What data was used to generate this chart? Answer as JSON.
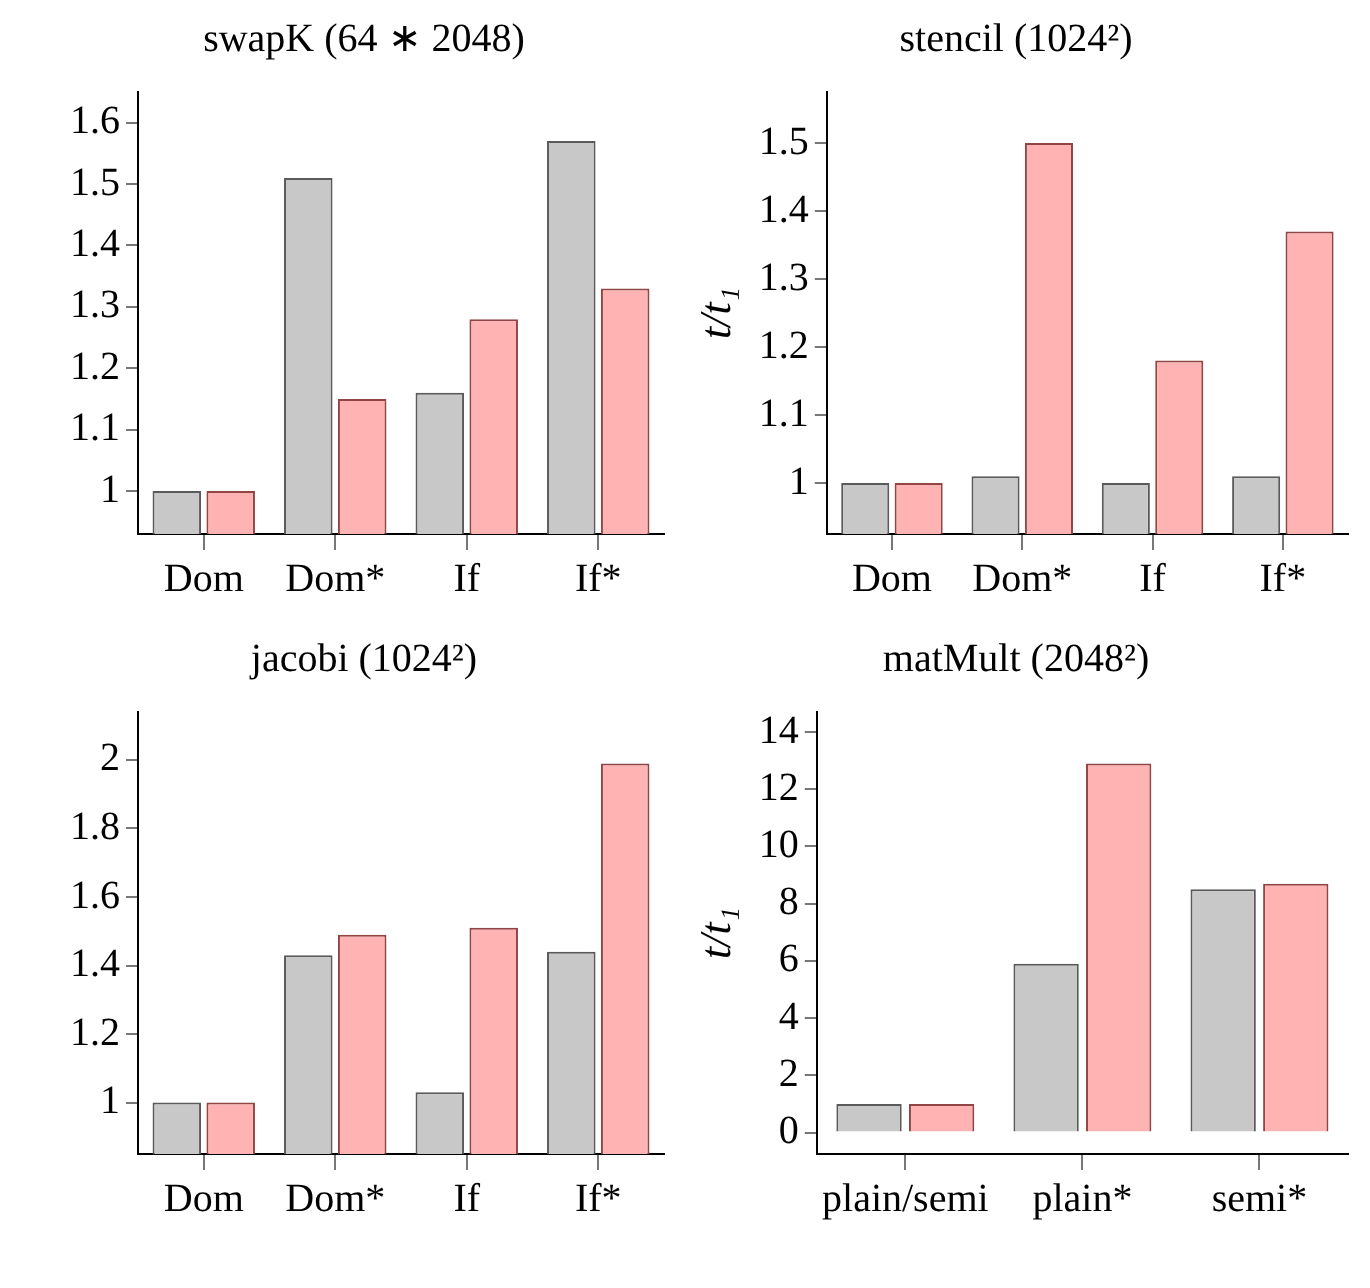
{
  "chart_data": [
    {
      "type": "bar",
      "title": "swapK (64 ∗ 2048)",
      "categories": [
        "Dom",
        "Dom*",
        "If",
        "If*"
      ],
      "series": [
        {
          "color": "#c8c8c8",
          "values": [
            1,
            1.51,
            1.16,
            1.57
          ]
        },
        {
          "color": "#ffb3b3",
          "values": [
            1,
            1.15,
            1.28,
            1.33
          ]
        }
      ],
      "ylim": [
        0.93,
        1.65
      ],
      "yticks": [
        1,
        1.1,
        1.2,
        1.3,
        1.4,
        1.5,
        1.6
      ],
      "grid": false,
      "legend": false
    },
    {
      "type": "bar",
      "title": "stencil (1024²)",
      "ylabel": "t/t₁",
      "categories": [
        "Dom",
        "Dom*",
        "If",
        "If*"
      ],
      "series": [
        {
          "color": "#c8c8c8",
          "values": [
            1,
            1.01,
            1,
            1.01
          ]
        },
        {
          "color": "#ffb3b3",
          "values": [
            1,
            1.5,
            1.18,
            1.37
          ]
        }
      ],
      "ylim": [
        0.925,
        1.575
      ],
      "yticks": [
        1,
        1.1,
        1.2,
        1.3,
        1.4,
        1.5
      ],
      "grid": false,
      "legend": false
    },
    {
      "type": "bar",
      "title": "jacobi (1024²)",
      "categories": [
        "Dom",
        "Dom*",
        "If",
        "If*"
      ],
      "series": [
        {
          "color": "#c8c8c8",
          "values": [
            1,
            1.43,
            1.03,
            1.44
          ]
        },
        {
          "color": "#ffb3b3",
          "values": [
            1,
            1.49,
            1.51,
            1.99
          ]
        }
      ],
      "ylim": [
        0.85,
        2.14
      ],
      "yticks": [
        1,
        1.2,
        1.4,
        1.6,
        1.8,
        2
      ],
      "grid": false,
      "legend": false
    },
    {
      "type": "bar",
      "title": "matMult (2048²)",
      "ylabel": "t/t₁",
      "categories": [
        "plain/semi",
        "plain*",
        "semi*"
      ],
      "series": [
        {
          "color": "#c8c8c8",
          "values": [
            1,
            5.9,
            8.5
          ]
        },
        {
          "color": "#ffb3b3",
          "values": [
            1,
            12.9,
            8.7
          ]
        }
      ],
      "ylim": [
        -0.75,
        14.7
      ],
      "yticks": [
        0,
        2,
        4,
        6,
        8,
        10,
        12,
        14
      ],
      "grid": false,
      "legend": false
    }
  ]
}
